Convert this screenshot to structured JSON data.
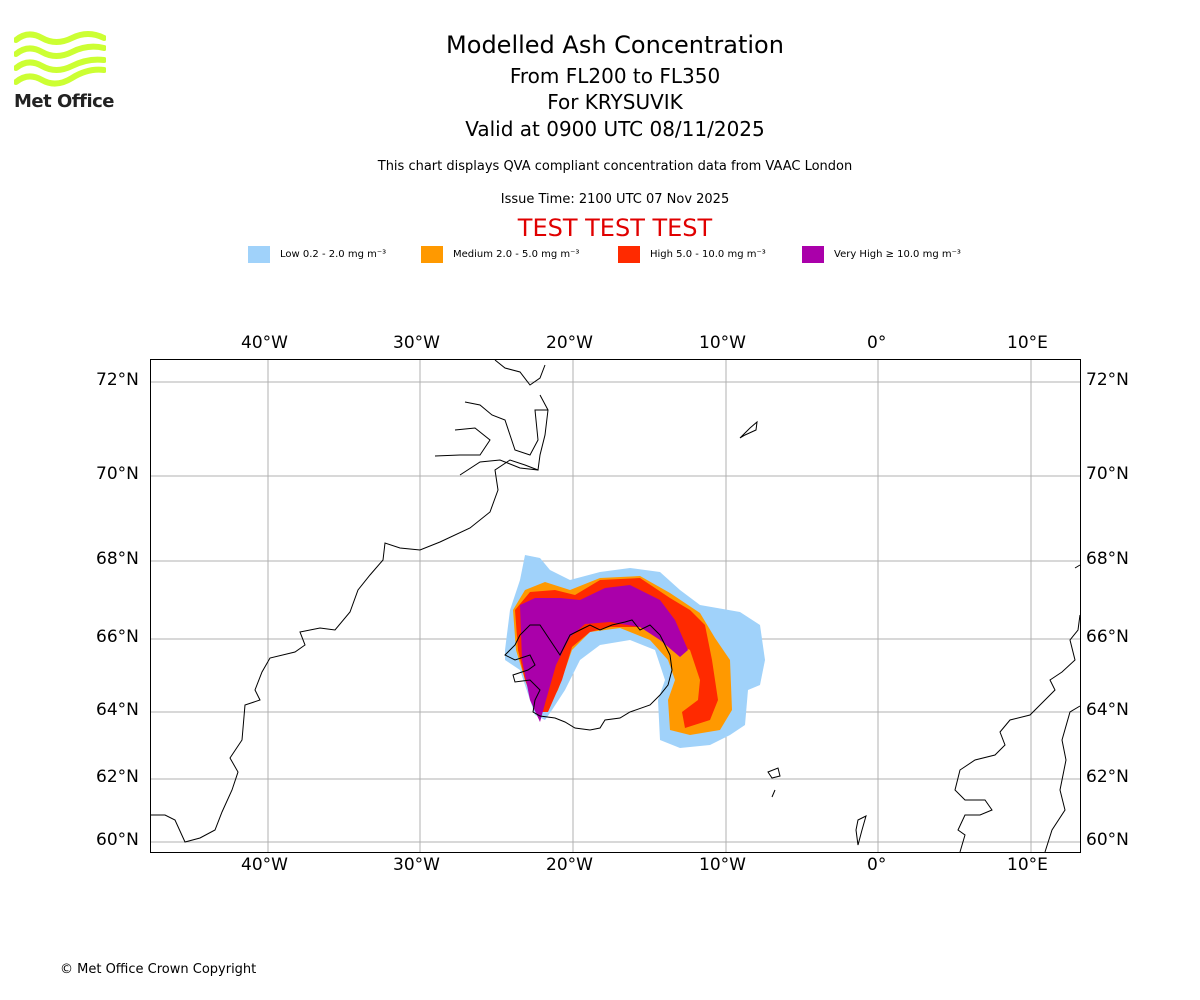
{
  "logo": {
    "text": "Met Office",
    "color": "#ccff33"
  },
  "header": {
    "title": "Modelled Ash Concentration",
    "levels": "From FL200 to FL350",
    "volcano": "For KRYSUVIK",
    "valid": "Valid at 0900 UTC 08/11/2025",
    "description": "This chart displays QVA compliant concentration data from VAAC London",
    "issue_time": "Issue Time: 2100 UTC 07 Nov 2025",
    "test_banner": "TEST TEST TEST"
  },
  "legend": [
    {
      "label": "Low 0.2 - 2.0 mg m⁻³",
      "color": "#a0d2fa"
    },
    {
      "label": "Medium 2.0 - 5.0 mg m⁻³",
      "color": "#ff9900"
    },
    {
      "label": "High 5.0 - 10.0 mg m⁻³",
      "color": "#ff2a00"
    },
    {
      "label": "Very High ≥ 10.0 mg m⁻³",
      "color": "#aa00aa"
    }
  ],
  "map": {
    "lon_labels": [
      "40°W",
      "30°W",
      "20°W",
      "10°W",
      "0°",
      "10°E"
    ],
    "lat_labels": [
      "72°N",
      "70°N",
      "68°N",
      "66°N",
      "64°N",
      "62°N",
      "60°N"
    ]
  },
  "footer": {
    "copyright": "© Met Office Crown Copyright"
  }
}
